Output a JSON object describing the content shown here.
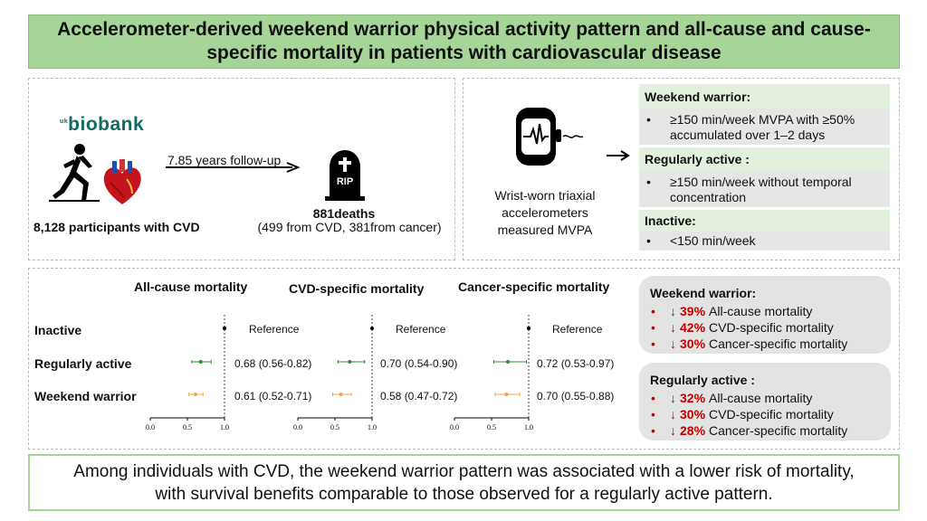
{
  "title": "Accelerometer-derived weekend warrior physical activity pattern and all-cause and cause-specific mortality in patients with cardiovascular disease",
  "study": {
    "logo_prefix": "uk",
    "logo": "biobank",
    "followup": "7.85 years follow-up",
    "participants": "8,128 participants with CVD",
    "rip": "RIP",
    "deaths": "881deaths",
    "deaths_detail": "(499 from CVD, 381from cancer)",
    "wrist_label": "Wrist-worn triaxial accelerometers measured MVPA"
  },
  "patterns": [
    {
      "name": "Weekend warrior:",
      "desc": "≥150 min/week MVPA with ≥50% accumulated over 1–2 days"
    },
    {
      "name": "Regularly active :",
      "desc": "≥150 min/week without temporal concentration"
    },
    {
      "name": "Inactive:",
      "desc": "<150 min/week"
    }
  ],
  "bullet": "•",
  "chart_data": {
    "type": "forest",
    "row_labels": [
      "Inactive",
      "Regularly active",
      "Weekend warrior"
    ],
    "axis": {
      "xlim": [
        0.0,
        1.0
      ],
      "ticks": [
        "0.0",
        "0.5",
        "1.0"
      ],
      "reference_line": 1.0
    },
    "series_colors": {
      "Regularly active": "#2e8b2e",
      "Weekend warrior": "#f5a54a",
      "Inactive": "#000000"
    },
    "panels": [
      {
        "title": "All-cause mortality",
        "rows": [
          {
            "group": "Inactive",
            "hr": 1.0,
            "low": 1.0,
            "high": 1.0,
            "label": "Reference"
          },
          {
            "group": "Regularly active",
            "hr": 0.68,
            "low": 0.56,
            "high": 0.82,
            "label": "0.68 (0.56-0.82)"
          },
          {
            "group": "Weekend warrior",
            "hr": 0.61,
            "low": 0.52,
            "high": 0.71,
            "label": "0.61 (0.52-0.71)"
          }
        ]
      },
      {
        "title": "CVD-specific mortality",
        "rows": [
          {
            "group": "Inactive",
            "hr": 1.0,
            "low": 1.0,
            "high": 1.0,
            "label": "Reference"
          },
          {
            "group": "Regularly active",
            "hr": 0.7,
            "low": 0.54,
            "high": 0.9,
            "label": "0.70 (0.54-0.90)"
          },
          {
            "group": "Weekend warrior",
            "hr": 0.58,
            "low": 0.47,
            "high": 0.72,
            "label": "0.58 (0.47-0.72)"
          }
        ]
      },
      {
        "title": "Cancer-specific mortality",
        "rows": [
          {
            "group": "Inactive",
            "hr": 1.0,
            "low": 1.0,
            "high": 1.0,
            "label": "Reference"
          },
          {
            "group": "Regularly active",
            "hr": 0.72,
            "low": 0.53,
            "high": 0.97,
            "label": "0.72 (0.53-0.97)"
          },
          {
            "group": "Weekend warrior",
            "hr": 0.7,
            "low": 0.55,
            "high": 0.88,
            "label": "0.70 (0.55-0.88)"
          }
        ]
      }
    ]
  },
  "summaries": [
    {
      "title": "Weekend warrior:",
      "items": [
        {
          "arrow": "↓",
          "pct": "39%",
          "text": "All-cause mortality"
        },
        {
          "arrow": "↓",
          "pct": "42%",
          "text": "CVD-specific mortality"
        },
        {
          "arrow": "↓",
          "pct": "30%",
          "text": "Cancer-specific mortality"
        }
      ]
    },
    {
      "title": "Regularly active :",
      "items": [
        {
          "arrow": "↓",
          "pct": "32%",
          "text": "All-cause mortality"
        },
        {
          "arrow": "↓",
          "pct": "30%",
          "text": "CVD-specific mortality"
        },
        {
          "arrow": "↓",
          "pct": "28%",
          "text": "Cancer-specific mortality"
        }
      ]
    }
  ],
  "conclusion": "Among individuals with CVD, the weekend warrior pattern was associated with a lower risk of mortality, with survival benefits comparable to those observed for a regularly active pattern."
}
